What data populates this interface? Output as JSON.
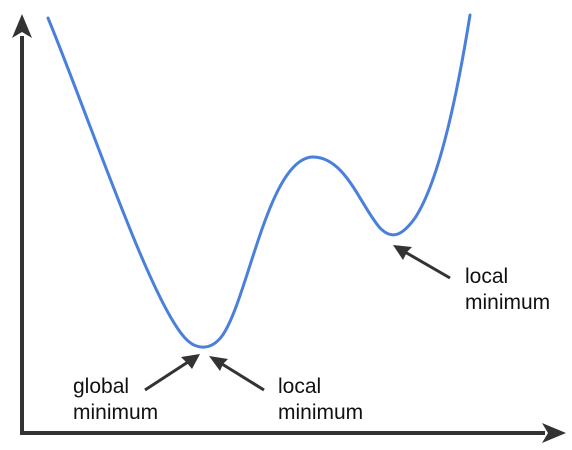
{
  "colors": {
    "curve": "#4a80dc",
    "axis": "#333333",
    "arrow": "#333333",
    "text": "#111111",
    "background": "#ffffff"
  },
  "labels": {
    "global_min": [
      "global",
      "minimum"
    ],
    "local_min_bottom": [
      "local",
      "minimum"
    ],
    "local_min_right": [
      "local",
      "minimum"
    ]
  }
}
